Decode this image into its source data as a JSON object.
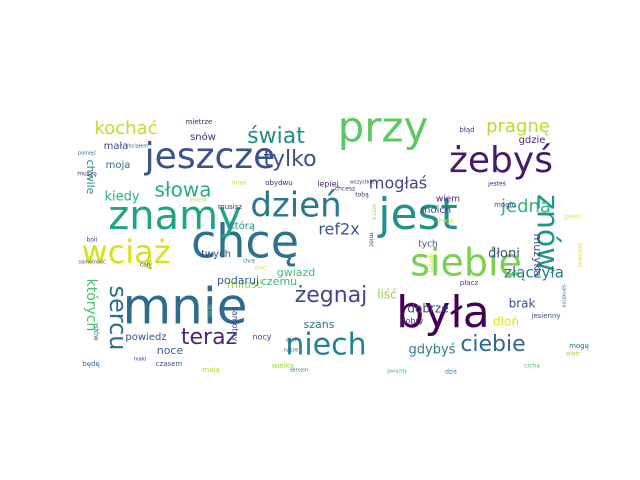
{
  "wordcloud": {
    "palette": "viridis",
    "words": [
      {
        "text": "mnie",
        "color": "#2f6b8e"
      },
      {
        "text": "chcę",
        "color": "#2c728e"
      },
      {
        "text": "przy",
        "color": "#5ec962"
      },
      {
        "text": "była",
        "color": "#440154"
      },
      {
        "text": "jest",
        "color": "#21918c"
      },
      {
        "text": "znamy",
        "color": "#20a486"
      },
      {
        "text": "siebie",
        "color": "#7ad151"
      },
      {
        "text": "jeszcze",
        "color": "#3b528b"
      },
      {
        "text": "żebyś",
        "color": "#481a6c"
      },
      {
        "text": "dzień",
        "color": "#2a788e"
      },
      {
        "text": "niech",
        "color": "#25858e"
      },
      {
        "text": "wciąż",
        "color": "#d8e219"
      },
      {
        "text": "znów",
        "color": "#1f988b"
      },
      {
        "text": "sercu",
        "color": "#2d708e"
      },
      {
        "text": "teraz",
        "color": "#482878"
      },
      {
        "text": "żegnaj",
        "color": "#3e4a89"
      },
      {
        "text": "ciebie",
        "color": "#31688e"
      },
      {
        "text": "tylko",
        "color": "#3e4c8a"
      },
      {
        "text": "świat",
        "color": "#23898e"
      },
      {
        "text": "słowa",
        "color": "#27ad81"
      },
      {
        "text": "kochać",
        "color": "#bddf26"
      },
      {
        "text": "pragnę",
        "color": "#b5de2b"
      },
      {
        "text": "jedna",
        "color": "#32b67a"
      },
      {
        "text": "mogłaś",
        "color": "#3f4788"
      },
      {
        "text": "ref2x",
        "color": "#3a548c"
      },
      {
        "text": "złączyła",
        "color": "#2a768e"
      },
      {
        "text": "dłoni",
        "color": "#3b528b"
      },
      {
        "text": "gdybyś",
        "color": "#287d8e"
      },
      {
        "text": "których",
        "color": "#4ac16d"
      },
      {
        "text": "kiedy",
        "color": "#2ab07f"
      },
      {
        "text": "dobrze",
        "color": "#414487"
      },
      {
        "text": "liść",
        "color": "#8fd744"
      },
      {
        "text": "dłoń",
        "color": "#e5e419"
      },
      {
        "text": "brak",
        "color": "#3a538b"
      },
      {
        "text": "muzyka",
        "color": "#404688"
      },
      {
        "text": "miłość",
        "color": "#95d840"
      },
      {
        "text": "podaruj",
        "color": "#355f8d"
      },
      {
        "text": "czemu",
        "color": "#35b779"
      },
      {
        "text": "szans",
        "color": "#2c728e"
      },
      {
        "text": "gwiazd",
        "color": "#3fbc73"
      },
      {
        "text": "noce",
        "color": "#355e8d"
      },
      {
        "text": "powiedz",
        "color": "#3b528b"
      },
      {
        "text": "snów",
        "color": "#46327e"
      },
      {
        "text": "moja",
        "color": "#31688e"
      },
      {
        "text": "mała",
        "color": "#404588"
      },
      {
        "text": "chwile",
        "color": "#24878e"
      },
      {
        "text": "którą",
        "color": "#20938c"
      },
      {
        "text": "twych",
        "color": "#3e4989"
      },
      {
        "text": "moich",
        "color": "#404387"
      },
      {
        "text": "gdzie",
        "color": "#46307e"
      },
      {
        "text": "tych",
        "color": "#3b528b"
      },
      {
        "text": "wiem",
        "color": "#482575"
      },
      {
        "text": "lepiej",
        "color": "#472c7a"
      },
      {
        "text": "dobry",
        "color": "#472f7d"
      },
      {
        "text": "samotny",
        "color": "#3f4889"
      },
      {
        "text": "nocy",
        "color": "#433e85"
      },
      {
        "text": "czasem",
        "color": "#39568c"
      },
      {
        "text": "wielką",
        "color": "#9bd93c"
      },
      {
        "text": "mają",
        "color": "#b0dd2f"
      },
      {
        "text": "będę",
        "color": "#31688e"
      },
      {
        "text": "słów",
        "color": "#2c728e"
      },
      {
        "text": "cały",
        "color": "#3b528b"
      },
      {
        "text": "boli",
        "color": "#453581"
      },
      {
        "text": "musisz",
        "color": "#472d7b"
      },
      {
        "text": "muszę",
        "color": "#46337f"
      },
      {
        "text": "obydwu",
        "color": "#482475"
      },
      {
        "text": "mietrze",
        "color": "#482173"
      },
      {
        "text": "błąd",
        "color": "#453882"
      },
      {
        "text": "płacz",
        "color": "#3f4788"
      },
      {
        "text": "pieśń",
        "color": "#e5e419"
      },
      {
        "text": "mogło",
        "color": "#3a548c"
      },
      {
        "text": "jesienny",
        "color": "#3c4f8a"
      },
      {
        "text": "mogę",
        "color": "#2c728e"
      },
      {
        "text": "cicha",
        "color": "#4ec36b"
      },
      {
        "text": "dziś",
        "color": "#25848e"
      },
      {
        "text": "wiatr",
        "color": "#9bd93c"
      },
      {
        "text": "grać",
        "color": "#7fd34e"
      },
      {
        "text": "gorzej",
        "color": "#c2df23"
      },
      {
        "text": "mieć",
        "color": "#3e4989"
      },
      {
        "text": "droga",
        "color": "#cae11f"
      },
      {
        "text": "chcesz",
        "color": "#472f7d"
      },
      {
        "text": "wszystkie",
        "color": "#46337f"
      },
      {
        "text": "tobą",
        "color": "#481f70"
      },
      {
        "text": "jesteś",
        "color": "#482173"
      },
      {
        "text": "serca",
        "color": "#9fda3a"
      },
      {
        "text": "jestem",
        "color": "#b8de29"
      },
      {
        "text": "moje",
        "color": "#cde11d"
      },
      {
        "text": "chciałem",
        "color": "#31688e"
      },
      {
        "text": "pamięć",
        "color": "#2c728e"
      },
      {
        "text": "samotność",
        "color": "#3b528b"
      },
      {
        "text": "sercem",
        "color": "#2d708e"
      },
      {
        "text": "nasze",
        "color": "#31688e"
      },
      {
        "text": "sam",
        "color": "#3b528b"
      },
      {
        "text": "chcę",
        "color": "#31688e"
      },
      {
        "text": "lśnić",
        "color": "#c8e020"
      },
      {
        "text": "mało",
        "color": "#472d7b"
      },
      {
        "text": "samotnie",
        "color": "#2c728e"
      },
      {
        "text": "gwiazdy",
        "color": "#3fbc73"
      },
      {
        "text": "zostawiać",
        "color": "#d2e21b"
      }
    ]
  }
}
